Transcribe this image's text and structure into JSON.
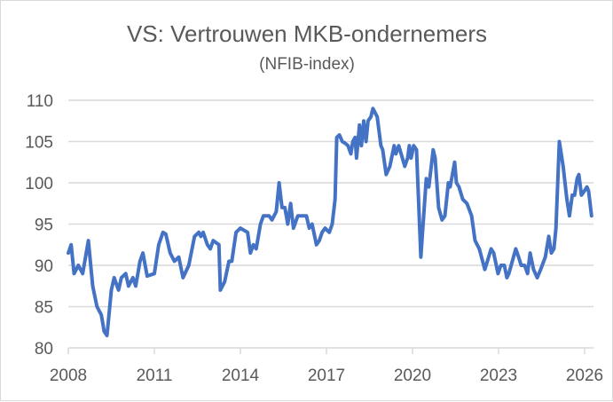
{
  "chart_data": {
    "type": "line",
    "title": "VS: Vertrouwen MKB-ondernemers",
    "subtitle": "(NFIB-index)",
    "xlabel": "",
    "ylabel": "",
    "xlim": [
      2008,
      2026
    ],
    "ylim": [
      80,
      110
    ],
    "grid": true,
    "legend": "none",
    "x_ticks": [
      "2008",
      "2011",
      "2014",
      "2017",
      "2020",
      "2023",
      "2026"
    ],
    "y_ticks": [
      "80",
      "85",
      "90",
      "95",
      "100",
      "105",
      "110"
    ],
    "line_color": "#4472c4",
    "series": [
      {
        "name": "NFIB-index",
        "points": [
          [
            2008.0,
            91.5
          ],
          [
            2008.1,
            92.5
          ],
          [
            2008.2,
            89
          ],
          [
            2008.35,
            90
          ],
          [
            2008.5,
            89
          ],
          [
            2008.7,
            93
          ],
          [
            2008.85,
            87.5
          ],
          [
            2009.0,
            85
          ],
          [
            2009.15,
            84
          ],
          [
            2009.25,
            82
          ],
          [
            2009.35,
            81.5
          ],
          [
            2009.5,
            87
          ],
          [
            2009.6,
            88.5
          ],
          [
            2009.75,
            87
          ],
          [
            2009.85,
            88.5
          ],
          [
            2010.0,
            89
          ],
          [
            2010.1,
            87.5
          ],
          [
            2010.25,
            88.5
          ],
          [
            2010.35,
            87.5
          ],
          [
            2010.5,
            90.5
          ],
          [
            2010.6,
            91.5
          ],
          [
            2010.75,
            88.7
          ],
          [
            2011.0,
            89
          ],
          [
            2011.15,
            92.5
          ],
          [
            2011.3,
            94
          ],
          [
            2011.4,
            93.8
          ],
          [
            2011.55,
            91.5
          ],
          [
            2011.7,
            90.5
          ],
          [
            2011.85,
            91
          ],
          [
            2012.0,
            88.5
          ],
          [
            2012.2,
            90
          ],
          [
            2012.4,
            93.5
          ],
          [
            2012.55,
            94
          ],
          [
            2012.62,
            93.5
          ],
          [
            2012.7,
            94
          ],
          [
            2012.85,
            92.5
          ],
          [
            2012.95,
            92
          ],
          [
            2013.05,
            93
          ],
          [
            2013.25,
            92.5
          ],
          [
            2013.3,
            87
          ],
          [
            2013.45,
            88
          ],
          [
            2013.6,
            90.5
          ],
          [
            2013.7,
            90.5
          ],
          [
            2013.85,
            94
          ],
          [
            2014.0,
            94.5
          ],
          [
            2014.25,
            94
          ],
          [
            2014.35,
            91.5
          ],
          [
            2014.45,
            92.5
          ],
          [
            2014.55,
            92
          ],
          [
            2014.7,
            95
          ],
          [
            2014.8,
            96
          ],
          [
            2015.0,
            96
          ],
          [
            2015.1,
            95.5
          ],
          [
            2015.25,
            96.5
          ],
          [
            2015.35,
            100
          ],
          [
            2015.45,
            97
          ],
          [
            2015.55,
            97
          ],
          [
            2015.65,
            95
          ],
          [
            2015.75,
            97.5
          ],
          [
            2015.85,
            94.5
          ],
          [
            2016.0,
            96
          ],
          [
            2016.15,
            96
          ],
          [
            2016.3,
            96
          ],
          [
            2016.4,
            94.5
          ],
          [
            2016.5,
            95
          ],
          [
            2016.65,
            92.5
          ],
          [
            2016.75,
            93
          ],
          [
            2016.85,
            94
          ],
          [
            2016.95,
            94.5
          ],
          [
            2017.1,
            94
          ],
          [
            2017.2,
            95
          ],
          [
            2017.3,
            98
          ],
          [
            2017.36,
            105.5
          ],
          [
            2017.45,
            105.8
          ],
          [
            2017.55,
            105
          ],
          [
            2017.65,
            104.8
          ],
          [
            2017.75,
            104.5
          ],
          [
            2017.85,
            103.5
          ],
          [
            2017.92,
            105
          ],
          [
            2018.0,
            105.5
          ],
          [
            2018.05,
            103
          ],
          [
            2018.15,
            107
          ],
          [
            2018.22,
            104.5
          ],
          [
            2018.3,
            107.5
          ],
          [
            2018.38,
            105
          ],
          [
            2018.45,
            107.5
          ],
          [
            2018.55,
            108
          ],
          [
            2018.62,
            109
          ],
          [
            2018.77,
            108
          ],
          [
            2018.9,
            104.5
          ],
          [
            2018.96,
            104
          ],
          [
            2019.08,
            101
          ],
          [
            2019.21,
            102
          ],
          [
            2019.36,
            104.5
          ],
          [
            2019.42,
            103.5
          ],
          [
            2019.52,
            104.5
          ],
          [
            2019.73,
            102
          ],
          [
            2019.83,
            103
          ],
          [
            2019.89,
            104.5
          ],
          [
            2019.95,
            103
          ],
          [
            2020.04,
            104.5
          ],
          [
            2020.14,
            104
          ],
          [
            2020.29,
            91
          ],
          [
            2020.35,
            94
          ],
          [
            2020.48,
            100.5
          ],
          [
            2020.57,
            99.5
          ],
          [
            2020.72,
            104
          ],
          [
            2020.79,
            103
          ],
          [
            2020.91,
            97
          ],
          [
            2021.03,
            95.5
          ],
          [
            2021.13,
            96
          ],
          [
            2021.25,
            100
          ],
          [
            2021.31,
            99.5
          ],
          [
            2021.47,
            102.5
          ],
          [
            2021.53,
            100
          ],
          [
            2021.62,
            99.5
          ],
          [
            2021.75,
            98
          ],
          [
            2021.9,
            97.5
          ],
          [
            2022.06,
            96
          ],
          [
            2022.18,
            93
          ],
          [
            2022.33,
            92
          ],
          [
            2022.52,
            89.5
          ],
          [
            2022.61,
            90.5
          ],
          [
            2022.74,
            92
          ],
          [
            2022.83,
            91.5
          ],
          [
            2022.98,
            89
          ],
          [
            2023.08,
            90
          ],
          [
            2023.2,
            90
          ],
          [
            2023.29,
            88.5
          ],
          [
            2023.36,
            89
          ],
          [
            2023.48,
            90.5
          ],
          [
            2023.6,
            92
          ],
          [
            2023.7,
            91
          ],
          [
            2023.79,
            90
          ],
          [
            2023.91,
            90
          ],
          [
            2024.01,
            89
          ],
          [
            2024.1,
            91.5
          ],
          [
            2024.22,
            89.5
          ],
          [
            2024.35,
            88.5
          ],
          [
            2024.47,
            89.5
          ],
          [
            2024.63,
            91
          ],
          [
            2024.75,
            93.5
          ],
          [
            2024.84,
            91.5
          ],
          [
            2024.93,
            92
          ],
          [
            2025.0,
            94.5
          ],
          [
            2025.12,
            105
          ],
          [
            2025.25,
            102
          ],
          [
            2025.38,
            98
          ],
          [
            2025.47,
            96
          ],
          [
            2025.57,
            98.5
          ],
          [
            2025.65,
            98.5
          ],
          [
            2025.74,
            100.5
          ],
          [
            2025.8,
            101
          ],
          [
            2025.89,
            98.5
          ],
          [
            2025.99,
            99
          ],
          [
            2026.08,
            99.5
          ],
          [
            2026.14,
            99
          ],
          [
            2026.24,
            96
          ]
        ]
      }
    ]
  }
}
